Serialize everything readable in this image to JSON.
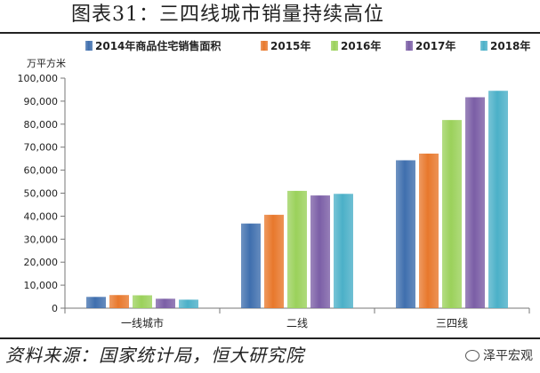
{
  "header": {
    "title": "图表31：三四线城市销量持续高位"
  },
  "footer": {
    "source": "资料来源：国家统计局，恒大研究院",
    "watermark": "泽平宏观"
  },
  "chart_data": {
    "type": "bar",
    "unit_label": "万平方米",
    "categories": [
      "一线城市",
      "二线",
      "三四线"
    ],
    "series": [
      {
        "name": "2014年商品住宅销售面积",
        "color": "#3f6fae",
        "values": [
          4900,
          36800,
          64300
        ]
      },
      {
        "name": "2015年",
        "color": "#e8782c",
        "values": [
          5700,
          40600,
          67200
        ]
      },
      {
        "name": "2016年",
        "color": "#9bd15b",
        "values": [
          5600,
          51000,
          81800
        ]
      },
      {
        "name": "2017年",
        "color": "#7b5ea6",
        "values": [
          4100,
          49000,
          91700
        ]
      },
      {
        "name": "2018年",
        "color": "#4bb0c8",
        "values": [
          3700,
          49700,
          94500
        ]
      }
    ],
    "ylim": [
      0,
      100000
    ],
    "yticks": [
      0,
      10000,
      20000,
      30000,
      40000,
      50000,
      60000,
      70000,
      80000,
      90000,
      100000
    ],
    "ytick_labels": [
      "0",
      "10,000",
      "20,000",
      "30,000",
      "40,000",
      "50,000",
      "60,000",
      "70,000",
      "80,000",
      "90,000",
      "100,000"
    ],
    "legend_position": "top",
    "grid": false
  }
}
